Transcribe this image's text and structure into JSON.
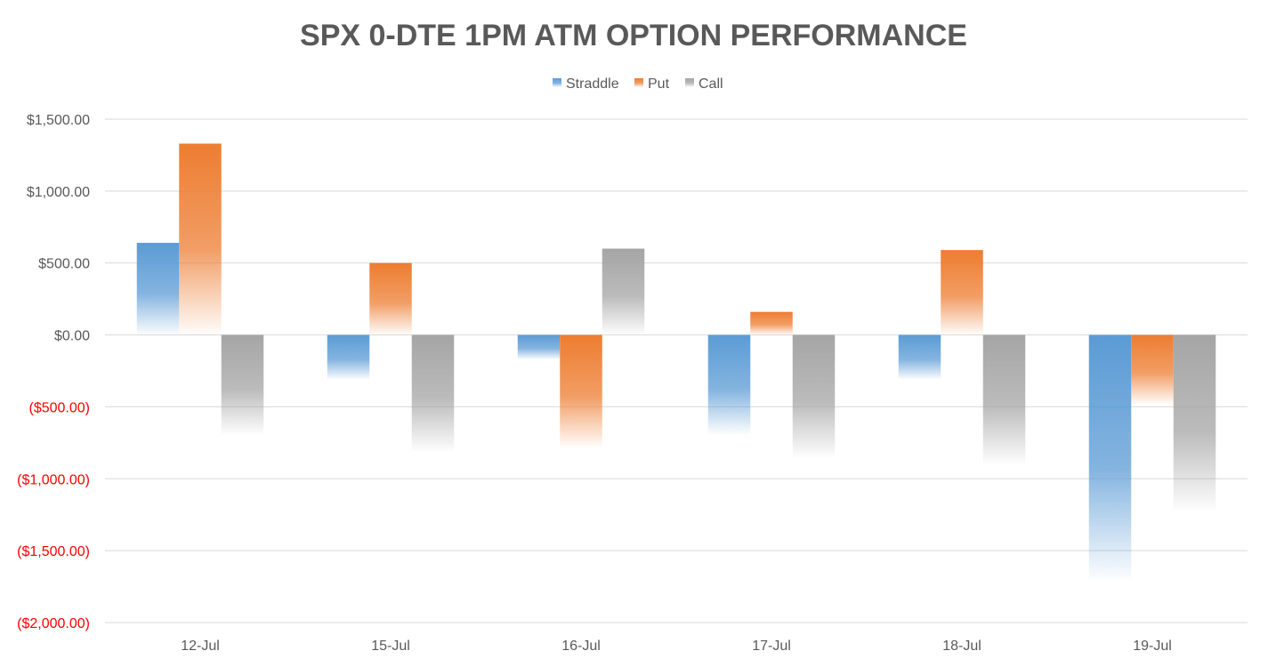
{
  "chart_data": {
    "type": "bar",
    "title": "SPX 0-DTE 1PM ATM OPTION PERFORMANCE",
    "categories": [
      "12-Jul",
      "15-Jul",
      "16-Jul",
      "17-Jul",
      "18-Jul",
      "19-Jul"
    ],
    "series": [
      {
        "name": "Straddle",
        "color": "#5b9bd5",
        "values": [
          640,
          -310,
          -170,
          -690,
          -310,
          -1700
        ]
      },
      {
        "name": "Put",
        "color": "#ed7d31",
        "values": [
          1330,
          500,
          -780,
          160,
          590,
          -480
        ]
      },
      {
        "name": "Call",
        "color": "#a5a5a5",
        "values": [
          -690,
          -810,
          600,
          -850,
          -900,
          -1220
        ]
      }
    ],
    "ylim": [
      -2000,
      1500
    ],
    "yticks": [
      1500,
      1000,
      500,
      0,
      -500,
      -1000,
      -1500,
      -2000
    ],
    "ytick_labels": [
      "$1,500.00",
      "$1,000.00",
      "$500.00",
      "$0.00",
      "($500.00)",
      "($1,000.00)",
      "($1,500.00)",
      "($2,000.00)"
    ],
    "negative_label_color": "#ff0000",
    "positive_label_color": "#595959",
    "grid": true,
    "legend_position": "top-center",
    "bar_style": "gradient-fade"
  }
}
